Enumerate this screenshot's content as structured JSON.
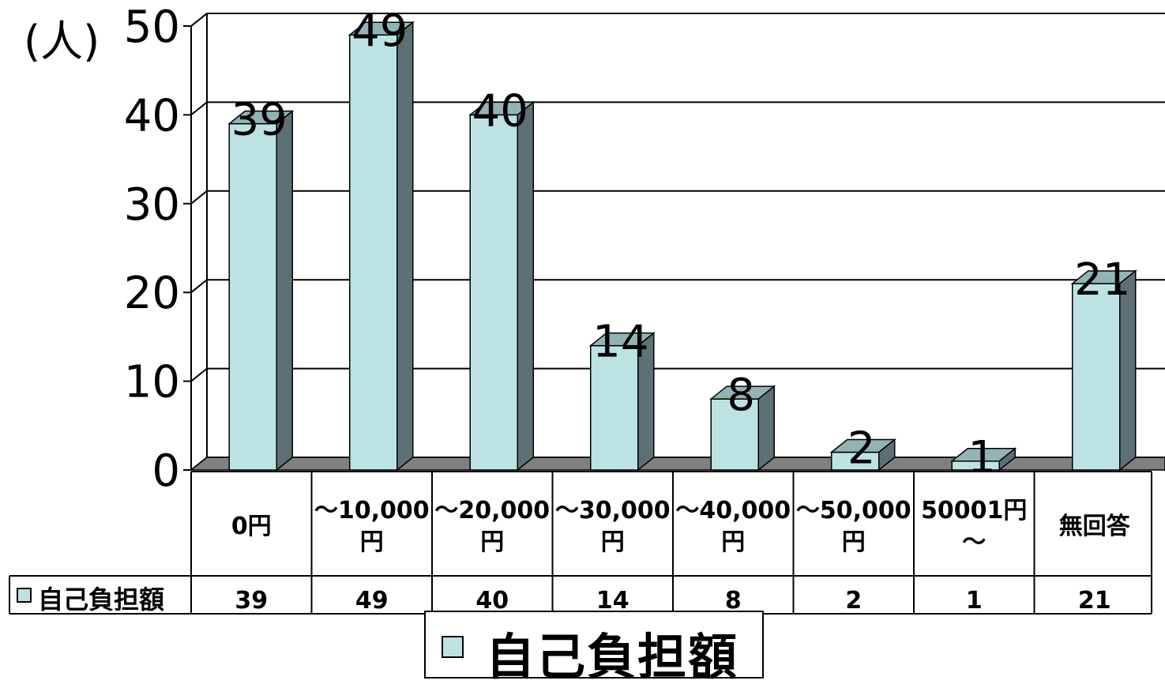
{
  "chart_data": {
    "type": "bar",
    "y_unit": "(人)",
    "categories": [
      "0円",
      "～10,000\n円",
      "～20,000\n円",
      "～30,000\n円",
      "～40,000\n円",
      "～50,000\n円",
      "50001円\n～",
      "無回答"
    ],
    "series": [
      {
        "name": "自己負担額",
        "values": [
          39,
          49,
          40,
          14,
          8,
          2,
          1,
          21
        ],
        "color": "#bde2e4"
      }
    ],
    "yticks": [
      0,
      10,
      20,
      30,
      40,
      50
    ],
    "ylim": [
      0,
      50
    ],
    "grid": true,
    "data_labels": true,
    "legend_position": "bottom",
    "data_table": true
  }
}
